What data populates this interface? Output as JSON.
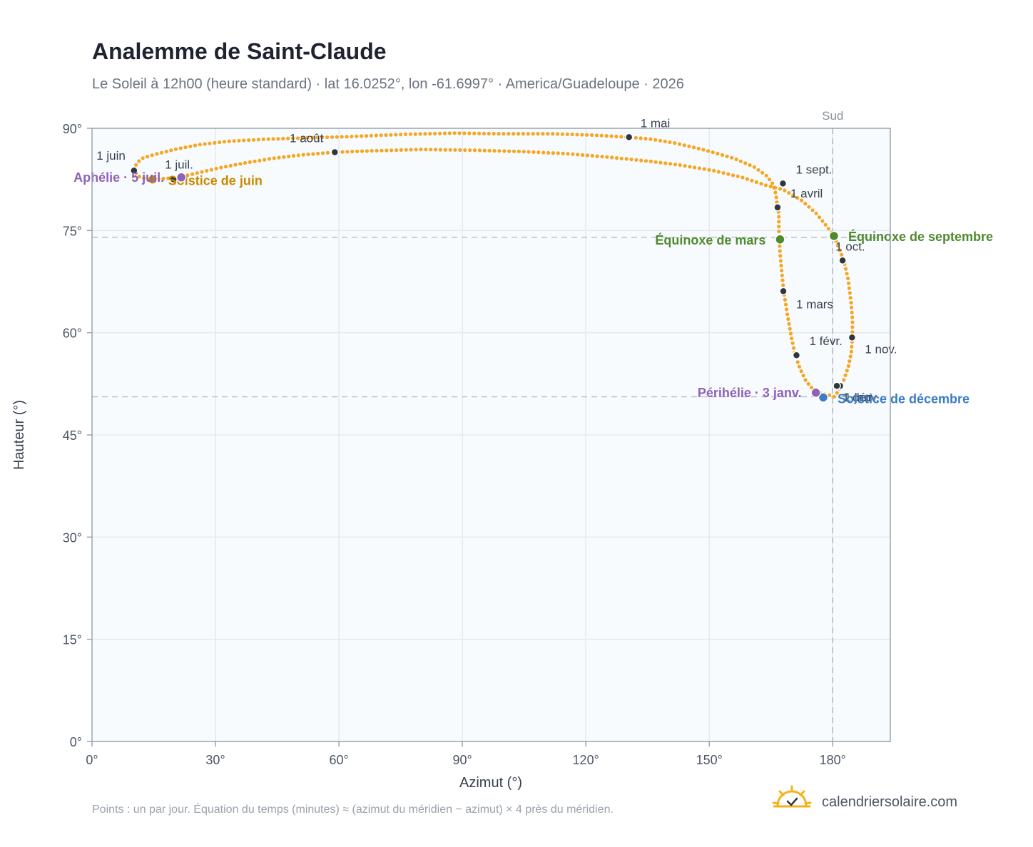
{
  "title": "Analemme de Saint-Claude",
  "subtitle": "Le Soleil à 12h00 (heure standard) · lat 16.0252°, lon -61.6997° · America/Guadeloupe · 2026",
  "footnote": "Points : un par jour. Équation du temps (minutes) ≈ (azimut du méridien − azimut) × 4 près du méridien.",
  "brand": "calendriersolaire.com",
  "colors": {
    "curve": "#f5a623",
    "month_point": "#2f3640",
    "equinox": "#4f8a2f",
    "solstice_june": "#c88a00",
    "solstice_dec": "#3b7cc4",
    "apsis": "#8e62b8",
    "grid": "#e5e9ee",
    "plot_bg": "#f8fbfd",
    "frame": "#98a3af"
  },
  "chart_data": {
    "type": "scatter",
    "xlabel": "Azimut (°)",
    "ylabel": "Hauteur (°)",
    "xlim": [
      0,
      194
    ],
    "ylim": [
      0,
      90
    ],
    "x_ticks": [
      {
        "value": 0,
        "label": "0°"
      },
      {
        "value": 30,
        "label": "30°"
      },
      {
        "value": 60,
        "label": "60°"
      },
      {
        "value": 90,
        "label": "90°"
      },
      {
        "value": 120,
        "label": "120°"
      },
      {
        "value": 150,
        "label": "150°"
      },
      {
        "value": 180,
        "label": "180°"
      }
    ],
    "y_ticks": [
      {
        "value": 0,
        "label": "0°"
      },
      {
        "value": 15,
        "label": "15°"
      },
      {
        "value": 30,
        "label": "30°"
      },
      {
        "value": 45,
        "label": "45°"
      },
      {
        "value": 60,
        "label": "60°"
      },
      {
        "value": 75,
        "label": "75°"
      },
      {
        "value": 90,
        "label": "90°"
      }
    ],
    "grid": true,
    "south_line": {
      "azimuth": 180,
      "label": "Sud"
    },
    "reference_lines": {
      "h_equinox": 74.0,
      "h_dec_solstice": 50.6
    },
    "curve_path": [
      [
        180.3,
        50.6
      ],
      [
        178.9,
        50.9
      ],
      [
        177.3,
        51.1
      ],
      [
        175.2,
        51.7
      ],
      [
        173.5,
        52.9
      ],
      [
        172.0,
        54.8
      ],
      [
        170.8,
        56.9
      ],
      [
        169.9,
        59.5
      ],
      [
        169.0,
        62.6
      ],
      [
        168.1,
        66.0
      ],
      [
        167.6,
        69.0
      ],
      [
        167.2,
        71.8
      ],
      [
        167.0,
        73.8
      ],
      [
        166.9,
        75.5
      ],
      [
        166.9,
        77.5
      ],
      [
        166.6,
        78.4
      ],
      [
        166.2,
        80.3
      ],
      [
        165.5,
        81.8
      ],
      [
        164.0,
        83.0
      ],
      [
        161.0,
        84.3
      ],
      [
        156.0,
        85.6
      ],
      [
        149.0,
        86.8
      ],
      [
        142.0,
        87.8
      ],
      [
        136.0,
        88.4
      ],
      [
        130.5,
        88.7
      ],
      [
        122.0,
        89.0
      ],
      [
        112.0,
        89.2
      ],
      [
        100.0,
        89.2
      ],
      [
        88.0,
        89.3
      ],
      [
        75.0,
        89.1
      ],
      [
        63.0,
        88.8
      ],
      [
        52.0,
        88.6
      ],
      [
        42.0,
        88.4
      ],
      [
        33.0,
        88.1
      ],
      [
        26.0,
        87.6
      ],
      [
        20.0,
        86.9
      ],
      [
        15.5,
        86.2
      ],
      [
        12.5,
        85.7
      ],
      [
        11.0,
        85.0
      ],
      [
        10.4,
        84.3
      ],
      [
        10.2,
        83.8
      ],
      [
        10.4,
        83.3
      ],
      [
        11.8,
        82.8
      ],
      [
        14.0,
        82.5
      ],
      [
        16.8,
        82.6
      ],
      [
        19.5,
        82.7
      ],
      [
        22.5,
        83.0
      ],
      [
        26.0,
        83.5
      ],
      [
        31.0,
        84.2
      ],
      [
        37.0,
        84.9
      ],
      [
        44.0,
        85.6
      ],
      [
        51.0,
        86.1
      ],
      [
        59.0,
        86.5
      ],
      [
        68.0,
        86.7
      ],
      [
        80.0,
        86.9
      ],
      [
        92.0,
        86.8
      ],
      [
        104.0,
        86.6
      ],
      [
        115.0,
        86.3
      ],
      [
        125.0,
        85.8
      ],
      [
        135.0,
        85.2
      ],
      [
        143.0,
        84.6
      ],
      [
        151.0,
        83.8
      ],
      [
        158.0,
        82.8
      ],
      [
        164.0,
        81.6
      ],
      [
        168.0,
        81.0
      ],
      [
        172.5,
        79.4
      ],
      [
        176.0,
        77.5
      ],
      [
        178.6,
        75.6
      ],
      [
        180.3,
        74.2
      ],
      [
        181.6,
        72.3
      ],
      [
        182.7,
        70.6
      ],
      [
        183.7,
        68.0
      ],
      [
        184.4,
        64.8
      ],
      [
        184.8,
        62.0
      ],
      [
        184.8,
        59.3
      ],
      [
        184.5,
        57.0
      ],
      [
        183.8,
        55.0
      ],
      [
        182.8,
        53.2
      ],
      [
        182.0,
        52.1
      ],
      [
        181.2,
        51.3
      ],
      [
        180.3,
        50.6
      ]
    ],
    "month_points": [
      {
        "label": "1 janv.",
        "x": 181.8,
        "y": 52.2
      },
      {
        "label": "1 févr.",
        "x": 171.2,
        "y": 56.7
      },
      {
        "label": "1 mars",
        "x": 168.0,
        "y": 66.1
      },
      {
        "label": "1 avril",
        "x": 166.6,
        "y": 78.4
      },
      {
        "label": "1 mai",
        "x": 130.5,
        "y": 88.7
      },
      {
        "label": "1 juin",
        "x": 10.2,
        "y": 83.8
      },
      {
        "label": "1 juil.",
        "x": 19.8,
        "y": 82.5
      },
      {
        "label": "1 août",
        "x": 59.0,
        "y": 86.5
      },
      {
        "label": "1 sept.",
        "x": 167.9,
        "y": 81.9
      },
      {
        "label": "1 oct.",
        "x": 182.4,
        "y": 70.6
      },
      {
        "label": "1 nov.",
        "x": 184.7,
        "y": 59.3
      },
      {
        "label": "1 déc.",
        "x": 181.0,
        "y": 52.2
      }
    ],
    "events": [
      {
        "label": "Équinoxe de mars",
        "x": 167.2,
        "y": 73.7,
        "color": "#4f8a2f"
      },
      {
        "label": "Équinoxe de septembre",
        "x": 180.3,
        "y": 74.2,
        "color": "#4f8a2f"
      },
      {
        "label": "Solstice de juin",
        "x": 14.7,
        "y": 82.5,
        "color": "#c88a00"
      },
      {
        "label": "Solstice de décembre",
        "x": 177.7,
        "y": 50.5,
        "color": "#3b7cc4"
      },
      {
        "label": "Aphélie · 5 juil.",
        "x": 21.7,
        "y": 82.8,
        "color": "#8e62b8"
      },
      {
        "label": "Périhélie · 3 janv.",
        "x": 175.9,
        "y": 51.2,
        "color": "#8e62b8"
      }
    ]
  }
}
